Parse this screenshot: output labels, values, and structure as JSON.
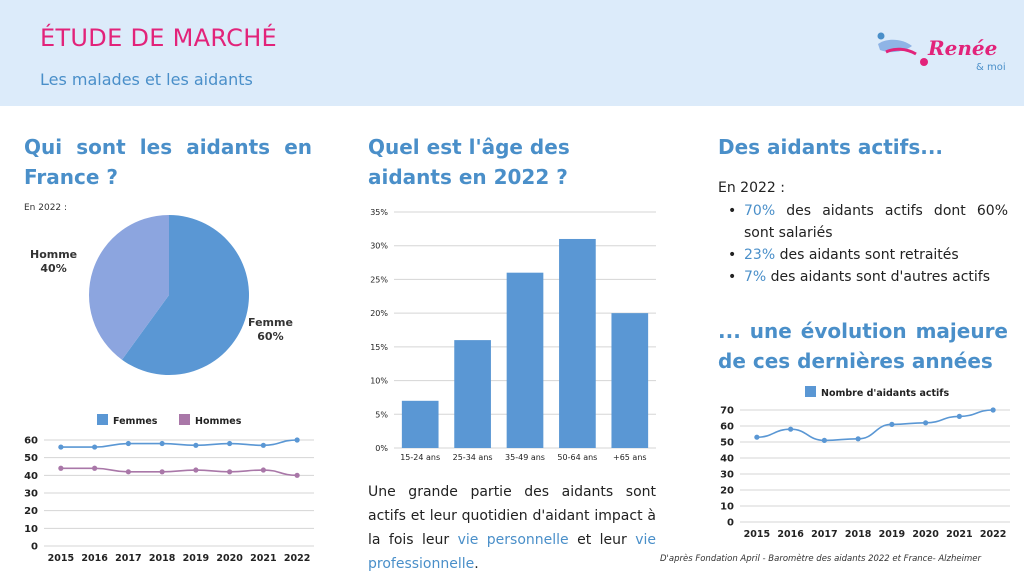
{
  "header": {
    "title": "ÉTUDE DE MARCHÉ",
    "subtitle": "Les malades et les aidants"
  },
  "logo": {
    "name": "Renée",
    "sub": "& moi"
  },
  "col1": {
    "title": "Qui sont les aidants en France ?",
    "note": "En 2022 :",
    "pie_labels": [
      {
        "name": "Homme",
        "pct": "40%"
      },
      {
        "name": "Femme",
        "pct": "60%"
      }
    ]
  },
  "col2": {
    "title": "Quel est l'âge des aidants en 2022 ?",
    "paragraph": {
      "part1": "Une grande partie des aidants sont actifs et leur quotidien d'aidant impact à la fois leur ",
      "hl1": "vie personnelle",
      "part2": " et leur ",
      "hl2": "vie professionnelle",
      "part3": "."
    }
  },
  "col3": {
    "title": "Des aidants actifs...",
    "intro": "En 2022 :",
    "bullets": [
      {
        "hl": "70%",
        "text": " des aidants actifs dont 60% sont salariés"
      },
      {
        "hl": "23%",
        "text": " des aidants sont retraités"
      },
      {
        "hl": "7%",
        "text": " des aidants sont d'autres actifs"
      }
    ],
    "title2": "... une évolution majeure de ces dernières années"
  },
  "source": "D'après Fondation April - Baromètre des aidants 2022 et France- Alzheimer",
  "chart_data": [
    {
      "type": "pie",
      "labels": [
        "Femme",
        "Homme"
      ],
      "values": [
        60,
        40
      ],
      "colors": [
        "#5a97d4",
        "#8ca5df"
      ]
    },
    {
      "type": "line",
      "x": [
        "2015",
        "2016",
        "2017",
        "2018",
        "2019",
        "2020",
        "2021",
        "2022"
      ],
      "series": [
        {
          "name": "Femmes",
          "values": [
            56,
            56,
            58,
            58,
            57,
            58,
            57,
            60
          ],
          "color": "#5a97d4"
        },
        {
          "name": "Hommes",
          "values": [
            44,
            44,
            42,
            42,
            43,
            42,
            43,
            40
          ],
          "color": "#a977a8"
        }
      ],
      "ylim": [
        0,
        60
      ],
      "yticks": [
        0,
        10,
        20,
        30,
        40,
        50,
        60
      ],
      "legend": "top"
    },
    {
      "type": "bar",
      "categories": [
        "15-24 ans",
        "25-34 ans",
        "35-49 ans",
        "50-64 ans",
        "+65 ans"
      ],
      "values": [
        7,
        16,
        26,
        31,
        20
      ],
      "ylim": [
        0,
        35
      ],
      "yticks": [
        "0%",
        "5%",
        "10%",
        "15%",
        "20%",
        "25%",
        "30%",
        "35%"
      ],
      "color": "#5a97d4",
      "grid": true
    },
    {
      "type": "line",
      "x": [
        "2015",
        "2016",
        "2017",
        "2018",
        "2019",
        "2020",
        "2021",
        "2022"
      ],
      "series": [
        {
          "name": "Nombre d'aidants actifs",
          "values": [
            53,
            58,
            51,
            52,
            61,
            62,
            66,
            70
          ],
          "color": "#5a97d4"
        }
      ],
      "ylim": [
        0,
        70
      ],
      "yticks": [
        0,
        10,
        20,
        30,
        40,
        50,
        60,
        70
      ],
      "legend": "top"
    }
  ]
}
